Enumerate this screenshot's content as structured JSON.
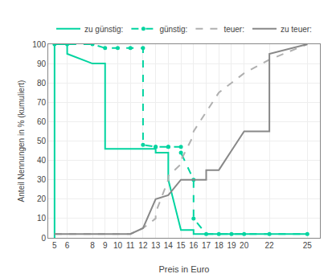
{
  "chart_data": {
    "type": "line",
    "xlabel": "Preis in Euro",
    "ylabel": "Anteil Nennungen in % (kumuliert)",
    "xlim": [
      4.5,
      26.0
    ],
    "xticks": [
      5,
      6,
      8,
      9,
      10,
      11,
      12,
      13,
      14,
      15,
      16,
      17,
      18,
      19,
      20,
      22,
      25
    ],
    "ylim": [
      0,
      100
    ],
    "yticks": [
      0,
      10,
      20,
      30,
      40,
      50,
      60,
      70,
      80,
      90,
      100
    ],
    "grid": true,
    "legend": "top",
    "series": [
      {
        "name": "zu günstig:",
        "color": "#00d4a0",
        "line_style": "solid",
        "x": [
          5,
          5,
          6,
          6,
          8,
          9,
          9,
          10,
          10,
          11,
          12,
          13,
          13,
          14,
          14,
          15,
          15,
          16,
          16,
          17,
          18,
          19,
          20,
          22,
          25
        ],
        "values": [
          0,
          100,
          100,
          95,
          90,
          90,
          46,
          46,
          46,
          46,
          46,
          46,
          44,
          44,
          30,
          5,
          4,
          4,
          2,
          2,
          2,
          2,
          2,
          2,
          2
        ]
      },
      {
        "name": "günstig:",
        "color": "#00d4a0",
        "line_style": "dashed",
        "marker": "circle",
        "x": [
          5,
          6,
          8,
          9,
          10,
          11,
          12,
          12,
          13,
          13,
          14,
          14,
          15,
          15,
          16,
          16,
          17,
          18,
          19,
          20,
          22,
          25
        ],
        "values": [
          100,
          100,
          100,
          98,
          98,
          98,
          98,
          48,
          47,
          47,
          47,
          47,
          47,
          44,
          30,
          10,
          2,
          2,
          2,
          2,
          2,
          2
        ]
      },
      {
        "name": "teuer:",
        "color": "#b0b0b0",
        "line_style": "dashed",
        "x": [
          5,
          6,
          8,
          9,
          10,
          11,
          12,
          13,
          13,
          14,
          14,
          15,
          15,
          16,
          16,
          17,
          18,
          19,
          20,
          22,
          25
        ],
        "values": [
          2,
          2,
          2,
          2,
          2,
          2,
          5,
          10,
          13,
          30,
          32,
          38,
          40,
          53,
          55,
          65,
          75,
          80,
          85,
          92,
          100
        ]
      },
      {
        "name": "zu teuer:",
        "color": "#888888",
        "line_style": "solid",
        "x": [
          5,
          6,
          8,
          9,
          10,
          11,
          12,
          13,
          14,
          15,
          16,
          17,
          17,
          18,
          19,
          20,
          22,
          22,
          25
        ],
        "values": [
          2,
          2,
          2,
          2,
          2,
          2,
          5,
          20,
          22,
          30,
          30,
          30,
          35,
          35,
          45,
          55,
          55,
          95,
          100
        ]
      }
    ]
  }
}
